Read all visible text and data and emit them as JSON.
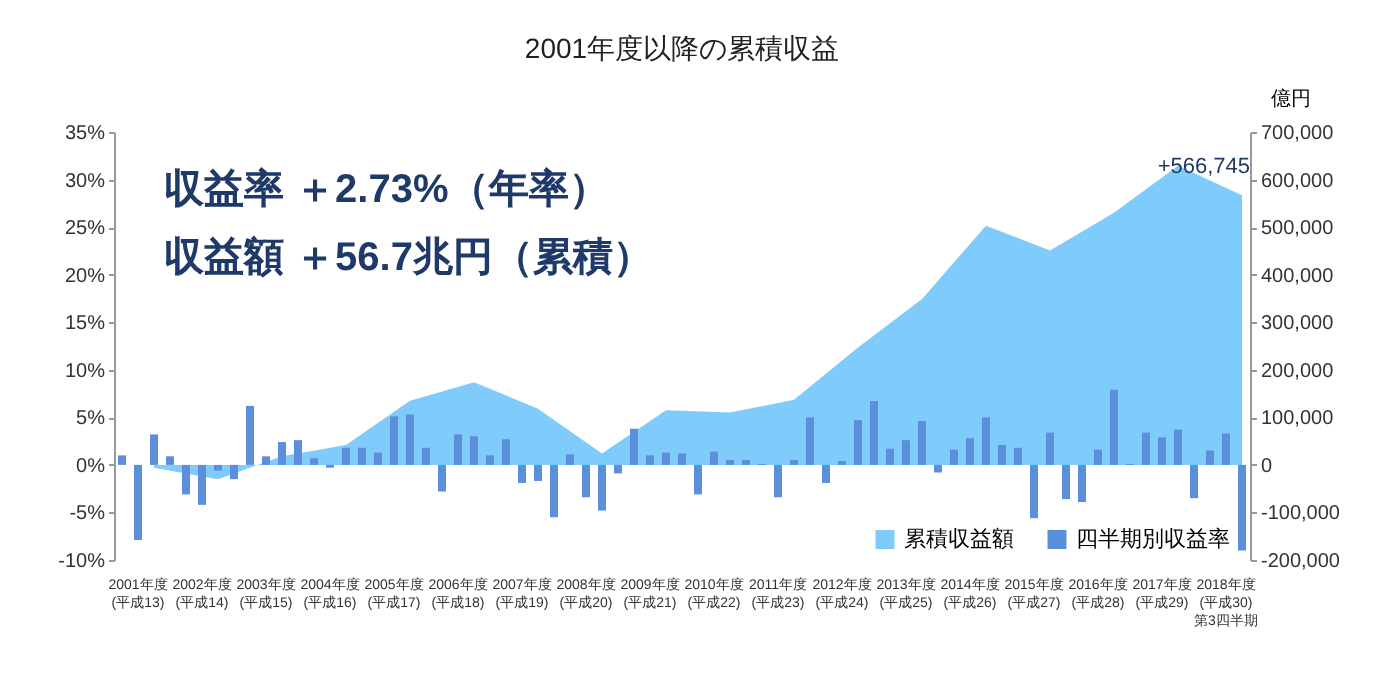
{
  "chart_data": {
    "type": "bar",
    "title": "2001年度以降の累積収益",
    "y2label": "億円",
    "annotations": [
      "収益率 ＋2.73%（年率）",
      "収益額 ＋56.7兆円（累積）"
    ],
    "categories": [
      null,
      "2001年度\n(平成13)",
      null,
      null,
      null,
      "2002年度\n(平成14)",
      null,
      null,
      null,
      "2003年度\n(平成15)",
      null,
      null,
      null,
      "2004年度\n(平成16)",
      null,
      null,
      null,
      "2005年度\n(平成17)",
      null,
      null,
      null,
      "2006年度\n(平成18)",
      null,
      null,
      null,
      "2007年度\n(平成19)",
      null,
      null,
      null,
      "2008年度\n(平成20)",
      null,
      null,
      null,
      "2009年度\n(平成21)",
      null,
      null,
      null,
      "2010年度\n(平成22)",
      null,
      null,
      null,
      "2011年度\n(平成23)",
      null,
      null,
      null,
      "2012年度\n(平成24)",
      null,
      null,
      null,
      "2013年度\n(平成25)",
      null,
      null,
      null,
      "2014年度\n(平成26)",
      null,
      null,
      null,
      "2015年度\n(平成27)",
      null,
      null,
      null,
      "2016年度\n(平成28)",
      null,
      null,
      null,
      "2017年度\n(平成29)",
      null,
      null,
      null,
      "2018年度\n(平成30)\n第3四半期",
      null
    ],
    "series": [
      {
        "name": "累積収益額",
        "type": "area",
        "axis": "y2",
        "color": "#7fcbfb",
        "values": [
          null,
          null,
          -6000,
          null,
          null,
          null,
          -30000,
          null,
          null,
          null,
          18000,
          null,
          null,
          null,
          42000,
          null,
          null,
          null,
          135000,
          null,
          null,
          null,
          174000,
          null,
          null,
          null,
          118000,
          null,
          null,
          null,
          24000,
          null,
          null,
          null,
          115000,
          null,
          null,
          null,
          110000,
          null,
          null,
          null,
          137000,
          null,
          null,
          null,
          247000,
          null,
          null,
          null,
          349000,
          null,
          null,
          null,
          503000,
          null,
          null,
          null,
          451000,
          null,
          null,
          null,
          530000,
          null,
          null,
          null,
          629000,
          null,
          null,
          null,
          566745
        ],
        "value_labels": [
          null,
          null,
          null,
          null,
          null,
          null,
          null,
          null,
          null,
          null,
          null,
          null,
          null,
          null,
          null,
          null,
          null,
          null,
          null,
          null,
          null,
          null,
          null,
          null,
          null,
          null,
          null,
          null,
          null,
          null,
          null,
          null,
          null,
          null,
          null,
          null,
          null,
          null,
          null,
          null,
          null,
          null,
          null,
          null,
          null,
          null,
          null,
          null,
          null,
          null,
          null,
          null,
          null,
          null,
          null,
          null,
          null,
          null,
          null,
          null,
          null,
          null,
          null,
          null,
          null,
          null,
          null,
          null,
          null,
          null,
          "+566,745"
        ]
      },
      {
        "name": "四半期別収益率",
        "type": "bar",
        "color": "#5b8fdc",
        "values": [
          1.0,
          -7.9,
          3.2,
          0.9,
          -3.1,
          -4.2,
          -0.6,
          -1.5,
          6.2,
          0.9,
          2.4,
          2.6,
          0.7,
          -0.3,
          1.8,
          1.8,
          1.3,
          5.1,
          5.3,
          1.8,
          -2.8,
          3.2,
          3.0,
          1.0,
          2.7,
          -1.9,
          -1.7,
          -5.5,
          1.1,
          -3.4,
          -4.8,
          -0.9,
          3.8,
          1.0,
          1.3,
          1.2,
          -3.1,
          1.4,
          0.5,
          0.5,
          0.1,
          -3.4,
          0.5,
          5.0,
          -1.9,
          0.4,
          4.7,
          6.7,
          1.7,
          2.6,
          4.6,
          -0.8,
          1.6,
          2.8,
          5.0,
          2.1,
          1.8,
          -5.6,
          3.4,
          -3.6,
          -3.9,
          1.6,
          7.9,
          0.1,
          3.4,
          2.9,
          3.7,
          -3.5,
          1.5,
          3.3,
          -9.0
        ]
      }
    ],
    "ylim": [
      -10,
      35
    ],
    "yticks": [
      {
        "value": -10,
        "label": "-10%"
      },
      {
        "value": -5,
        "label": "-5%"
      },
      {
        "value": 0,
        "label": "0%"
      },
      {
        "value": 5,
        "label": "5%"
      },
      {
        "value": 10,
        "label": "10%"
      },
      {
        "value": 15,
        "label": "15%"
      },
      {
        "value": 20,
        "label": "20%"
      },
      {
        "value": 25,
        "label": "25%"
      },
      {
        "value": 30,
        "label": "30%"
      },
      {
        "value": 35,
        "label": "35%"
      }
    ],
    "y2lim": [
      -200000,
      700000
    ],
    "y2ticks": [
      {
        "value": -200000,
        "label": "-200,000"
      },
      {
        "value": -100000,
        "label": "-100,000"
      },
      {
        "value": 0,
        "label": "0"
      },
      {
        "value": 100000,
        "label": "100,000"
      },
      {
        "value": 200000,
        "label": "200,000"
      },
      {
        "value": 300000,
        "label": "300,000"
      },
      {
        "value": 400000,
        "label": "400,000"
      },
      {
        "value": 500000,
        "label": "500,000"
      },
      {
        "value": 600000,
        "label": "600,000"
      },
      {
        "value": 700000,
        "label": "700,000"
      }
    ],
    "grid": false,
    "legend": "bottom right"
  }
}
